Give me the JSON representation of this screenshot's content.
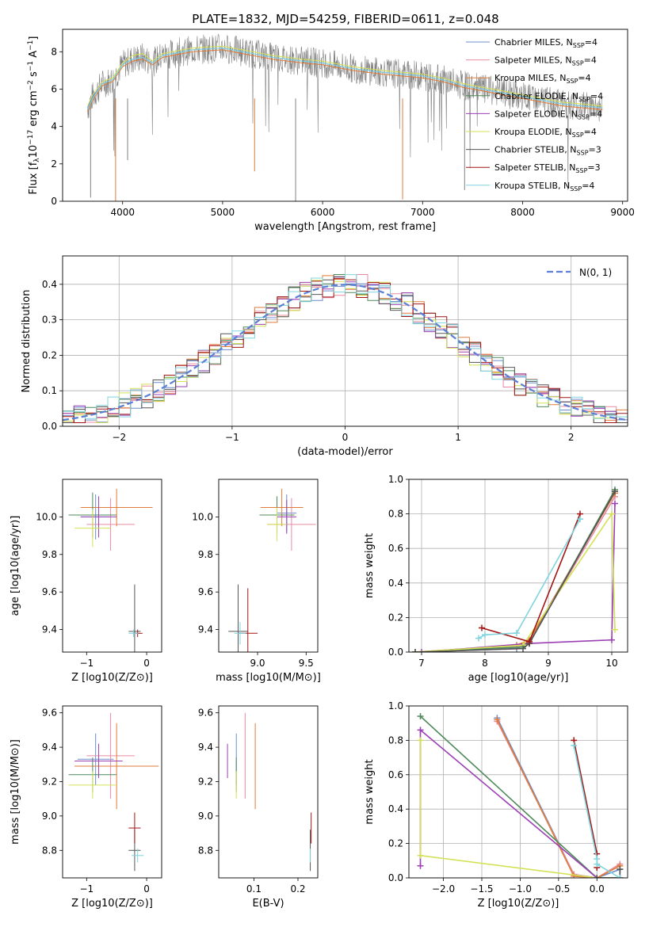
{
  "figure": {
    "title": "PLATE=1832, MJD=54259, FIBERID=0611, z=0.048"
  },
  "legend_entries": [
    {
      "label": "Chabrier MILES, N",
      "sub": "SSP",
      "tail": "=4",
      "color": "#6b8ccc"
    },
    {
      "label": "Salpeter MILES, N",
      "sub": "SSP",
      "tail": "=4",
      "color": "#e88ba0"
    },
    {
      "label": "Kroupa MILES, N",
      "sub": "SSP",
      "tail": "=4",
      "color": "#e07b39"
    },
    {
      "label": "Chabrier ELODIE, N",
      "sub": "SSP",
      "tail": "=4",
      "color": "#4f8a5a"
    },
    {
      "label": "Salpeter ELODIE, N",
      "sub": "SSP",
      "tail": "=4",
      "color": "#9b3fb5"
    },
    {
      "label": "Kroupa ELODIE, N",
      "sub": "SSP",
      "tail": "=4",
      "color": "#d4e157"
    },
    {
      "label": "Chabrier STELIB, N",
      "sub": "SSP",
      "tail": "=3",
      "color": "#555555"
    },
    {
      "label": "Salpeter STELIB, N",
      "sub": "SSP",
      "tail": "=3",
      "color": "#a31515"
    },
    {
      "label": "Kroupa STELIB, N",
      "sub": "SSP",
      "tail": "=4",
      "color": "#7fd4dd"
    }
  ],
  "chart_data": [
    {
      "id": "spectrum",
      "type": "line",
      "xlabel": "wavelength [Angstrom, rest frame]",
      "ylabel_parts": {
        "a": "Flux [f",
        "b": "10",
        "c": "−17",
        "d": " erg cm",
        "e": "−2",
        "f": " s",
        "g": "−1",
        "h": " A",
        "i": "−1",
        "j": "]"
      },
      "xlim": [
        3400,
        9050
      ],
      "ylim": [
        0,
        9.2
      ],
      "xticks": [
        4000,
        5000,
        6000,
        7000,
        8000,
        9000
      ],
      "yticks": [
        0,
        2,
        4,
        6,
        8
      ],
      "data_color": "#808080",
      "series": [
        {
          "name": "Chabrier MILES",
          "color": "#6b8ccc",
          "x": [
            3650,
            3700,
            3800,
            3900,
            4000,
            4100,
            4200,
            4300,
            4400,
            4500,
            4700,
            5000,
            5200,
            5500,
            5800,
            6000,
            6300,
            6600,
            6800,
            7000,
            7200,
            7400,
            7600,
            7800,
            8000,
            8200,
            8400,
            8600,
            8800
          ],
          "y": [
            5.0,
            5.6,
            6.3,
            6.5,
            7.3,
            7.6,
            7.7,
            7.4,
            7.8,
            7.9,
            8.1,
            8.2,
            8.0,
            7.7,
            7.5,
            7.4,
            7.1,
            6.9,
            6.8,
            6.7,
            6.5,
            6.2,
            6.0,
            5.8,
            5.6,
            5.4,
            5.2,
            5.1,
            5.0
          ]
        },
        {
          "name": "Kroupa MILES",
          "color": "#e07b39",
          "x": [
            3650,
            3700,
            3800,
            3900,
            4000,
            4100,
            4200,
            4300,
            4400,
            4500,
            4700,
            5000,
            5200,
            5500,
            5800,
            6000,
            6300,
            6600,
            6800,
            7000,
            7200,
            7400,
            7600,
            7800,
            8000,
            8200,
            8400,
            8600,
            8800
          ],
          "y": [
            4.8,
            5.4,
            6.2,
            6.4,
            7.2,
            7.5,
            7.6,
            7.3,
            7.7,
            7.8,
            8.0,
            8.1,
            7.9,
            7.6,
            7.4,
            7.3,
            7.0,
            6.8,
            6.7,
            6.6,
            6.4,
            6.1,
            5.9,
            5.7,
            5.5,
            5.3,
            5.1,
            5.0,
            4.9
          ]
        },
        {
          "name": "Kroupa ELODIE",
          "color": "#d4e157",
          "x": [
            3650,
            3700,
            3800,
            3900,
            4000,
            4100,
            4200,
            4300,
            4400,
            4500,
            4700,
            5000,
            5200,
            5500,
            5800,
            6000,
            6300,
            6600,
            6800,
            7000,
            7200,
            7400,
            7600,
            7800,
            8000,
            8200,
            8400,
            8600,
            8800
          ],
          "y": [
            5.1,
            5.7,
            6.4,
            6.6,
            7.4,
            7.8,
            7.9,
            7.5,
            7.9,
            8.0,
            8.2,
            8.3,
            8.1,
            7.8,
            7.6,
            7.5,
            7.2,
            7.0,
            6.9,
            6.8,
            6.6,
            6.3,
            6.1,
            5.9,
            5.7,
            5.5,
            5.3,
            5.2,
            5.1
          ]
        },
        {
          "name": "Kroupa STELIB",
          "color": "#7fd4dd",
          "x": [
            3650,
            3700,
            3800,
            3900,
            4000,
            4100,
            4200,
            4300,
            4400,
            4500,
            4700,
            5000,
            5200,
            5500,
            5800,
            6000,
            6300,
            6600,
            6800,
            7000,
            7200,
            7400,
            7600,
            7800,
            8000,
            8200,
            8400,
            8600,
            8800
          ],
          "y": [
            4.9,
            5.5,
            6.3,
            6.5,
            7.3,
            7.6,
            7.7,
            7.4,
            7.8,
            7.9,
            8.1,
            8.2,
            8.0,
            7.7,
            7.5,
            7.4,
            7.1,
            6.9,
            6.8,
            6.7,
            6.5,
            6.2,
            6.0,
            5.8,
            5.6,
            5.4,
            5.2,
            5.1,
            5.0
          ]
        }
      ]
    },
    {
      "id": "residuals",
      "type": "line",
      "xlabel": "(data-model)/error",
      "ylabel": "Normed distribution",
      "xlim": [
        -2.5,
        2.5
      ],
      "ylim": [
        0,
        0.48
      ],
      "xticks": [
        -2,
        -1,
        0,
        1,
        2
      ],
      "yticks": [
        0.0,
        0.1,
        0.2,
        0.3,
        0.4
      ],
      "grid": true,
      "legend": {
        "label": "N(0, 1)",
        "position": "top-right",
        "color": "#5b7fd4"
      }
    },
    {
      "id": "age-vs-z",
      "type": "scatter",
      "xlabel": "Z [log10(Z/Z⊙)]",
      "ylabel": "age  [log10(age/yr)]",
      "xlim": [
        -1.4,
        0.25
      ],
      "ylim": [
        9.28,
        10.2
      ],
      "xticks": [
        -1,
        0
      ],
      "yticks": [
        9.4,
        9.6,
        9.8,
        10.0
      ],
      "points": [
        {
          "color": "#6b8ccc",
          "x": -0.85,
          "y": 10.0,
          "xerr": 0.25,
          "yerr": 0.12
        },
        {
          "color": "#e88ba0",
          "x": -0.6,
          "y": 9.96,
          "xerr": 0.4,
          "yerr": 0.14
        },
        {
          "color": "#e07b39",
          "x": -0.5,
          "y": 10.05,
          "xerr": 0.6,
          "yerr": 0.1
        },
        {
          "color": "#4f8a5a",
          "x": -0.9,
          "y": 10.01,
          "xerr": 0.4,
          "yerr": 0.12
        },
        {
          "color": "#9b3fb5",
          "x": -0.8,
          "y": 10.0,
          "xerr": 0.3,
          "yerr": 0.11
        },
        {
          "color": "#d4e157",
          "x": -0.9,
          "y": 9.94,
          "xerr": 0.3,
          "yerr": 0.1
        },
        {
          "color": "#555555",
          "x": -0.2,
          "y": 9.39,
          "xerr": 0.1,
          "yerr": 0.25
        },
        {
          "color": "#a31515",
          "x": -0.15,
          "y": 9.38,
          "xerr": 0.08,
          "yerr": 0.02
        },
        {
          "color": "#7fd4dd",
          "x": -0.22,
          "y": 9.38,
          "xerr": 0.08,
          "yerr": 0.02
        }
      ]
    },
    {
      "id": "age-vs-mass",
      "type": "scatter",
      "xlabel": "mass [log10(M/M⊙)]",
      "xlim": [
        8.6,
        9.62
      ],
      "ylim": [
        9.28,
        10.2
      ],
      "xticks": [
        9.0,
        9.5
      ],
      "yticks": [
        9.4,
        9.6,
        9.8,
        10.0
      ],
      "points": [
        {
          "color": "#6b8ccc",
          "x": 9.3,
          "y": 10.02,
          "xerr": 0.1,
          "yerr": 0.1
        },
        {
          "color": "#e88ba0",
          "x": 9.35,
          "y": 9.96,
          "xerr": 0.25,
          "yerr": 0.14
        },
        {
          "color": "#e07b39",
          "x": 9.25,
          "y": 10.05,
          "xerr": 0.22,
          "yerr": 0.1
        },
        {
          "color": "#4f8a5a",
          "x": 9.2,
          "y": 10.01,
          "xerr": 0.18,
          "yerr": 0.1
        },
        {
          "color": "#9b3fb5",
          "x": 9.3,
          "y": 10.0,
          "xerr": 0.1,
          "yerr": 0.09
        },
        {
          "color": "#d4e157",
          "x": 9.2,
          "y": 9.96,
          "xerr": 0.1,
          "yerr": 0.09
        },
        {
          "color": "#555555",
          "x": 8.8,
          "y": 9.39,
          "xerr": 0.1,
          "yerr": 0.25
        },
        {
          "color": "#a31515",
          "x": 8.9,
          "y": 9.38,
          "xerr": 0.1,
          "yerr": 0.24
        },
        {
          "color": "#7fd4dd",
          "x": 8.82,
          "y": 9.38,
          "xerr": 0.06,
          "yerr": 0.06
        }
      ]
    },
    {
      "id": "weight-vs-age",
      "type": "line",
      "xlabel": "age  [log10(age/yr)]",
      "ylabel": "mass weight",
      "xlim": [
        6.8,
        10.25
      ],
      "ylim": [
        0,
        1.0
      ],
      "xticks": [
        7,
        8,
        9,
        10
      ],
      "yticks": [
        0.0,
        0.2,
        0.4,
        0.6,
        0.8,
        1.0
      ],
      "grid": true,
      "series": [
        {
          "color": "#6b8ccc",
          "x": [
            6.9,
            8.5,
            8.7,
            10.05
          ],
          "y": [
            0.0,
            0.02,
            0.05,
            0.93
          ]
        },
        {
          "color": "#e88ba0",
          "x": [
            6.9,
            8.5,
            8.7,
            10.05
          ],
          "y": [
            0.0,
            0.03,
            0.06,
            0.9
          ]
        },
        {
          "color": "#e07b39",
          "x": [
            6.9,
            8.5,
            8.7,
            10.05
          ],
          "y": [
            0.0,
            0.04,
            0.07,
            0.92
          ]
        },
        {
          "color": "#4f8a5a",
          "x": [
            6.9,
            8.6,
            8.7,
            10.05
          ],
          "y": [
            0.0,
            0.03,
            0.05,
            0.94
          ]
        },
        {
          "color": "#9b3fb5",
          "x": [
            7.0,
            8.7,
            10.0,
            10.05
          ],
          "y": [
            0.0,
            0.05,
            0.07,
            0.86
          ]
        },
        {
          "color": "#d4e157",
          "x": [
            6.9,
            8.6,
            10.0,
            10.05
          ],
          "y": [
            0.0,
            0.04,
            0.8,
            0.13
          ]
        },
        {
          "color": "#555555",
          "x": [
            6.9,
            8.6,
            8.7,
            10.05
          ],
          "y": [
            0.0,
            0.02,
            0.05,
            0.93
          ]
        },
        {
          "color": "#a31515",
          "x": [
            7.95,
            8.7,
            9.5
          ],
          "y": [
            0.14,
            0.06,
            0.8
          ]
        },
        {
          "color": "#7fd4dd",
          "x": [
            7.9,
            8.0,
            8.5,
            9.5
          ],
          "y": [
            0.08,
            0.1,
            0.11,
            0.77
          ]
        }
      ]
    },
    {
      "id": "mass-vs-z",
      "type": "scatter",
      "xlabel": "Z [log10(Z/Z⊙)]",
      "ylabel": "mass [log10(M/M⊙)]",
      "xlim": [
        -1.4,
        0.25
      ],
      "ylim": [
        8.64,
        9.64
      ],
      "xticks": [
        -1,
        0
      ],
      "yticks": [
        8.8,
        9.0,
        9.2,
        9.4,
        9.6
      ],
      "points": [
        {
          "color": "#6b8ccc",
          "x": -0.85,
          "y": 9.33,
          "xerr": 0.3,
          "yerr": 0.15
        },
        {
          "color": "#e88ba0",
          "x": -0.6,
          "y": 9.35,
          "xerr": 0.4,
          "yerr": 0.25
        },
        {
          "color": "#e07b39",
          "x": -0.5,
          "y": 9.29,
          "xerr": 0.7,
          "yerr": 0.25
        },
        {
          "color": "#4f8a5a",
          "x": -0.9,
          "y": 9.24,
          "xerr": 0.4,
          "yerr": 0.1
        },
        {
          "color": "#9b3fb5",
          "x": -0.8,
          "y": 9.32,
          "xerr": 0.4,
          "yerr": 0.1
        },
        {
          "color": "#d4e157",
          "x": -0.9,
          "y": 9.18,
          "xerr": 0.4,
          "yerr": 0.08
        },
        {
          "color": "#555555",
          "x": -0.2,
          "y": 8.8,
          "xerr": 0.1,
          "yerr": 0.12
        },
        {
          "color": "#a31515",
          "x": -0.2,
          "y": 8.93,
          "xerr": 0.1,
          "yerr": 0.09
        },
        {
          "color": "#7fd4dd",
          "x": -0.15,
          "y": 8.77,
          "xerr": 0.1,
          "yerr": 0.04
        }
      ]
    },
    {
      "id": "mass-vs-ebv",
      "type": "scatter",
      "xlabel": "E(B-V)",
      "xlim": [
        0.02,
        0.245
      ],
      "ylim": [
        8.64,
        9.64
      ],
      "xticks": [
        0.1,
        0.2
      ],
      "yticks": [
        8.8,
        9.0,
        9.2,
        9.4,
        9.6
      ],
      "points": [
        {
          "color": "#6b8ccc",
          "x": 0.06,
          "y": 9.33,
          "yerr": 0.15
        },
        {
          "color": "#e88ba0",
          "x": 0.08,
          "y": 9.35,
          "yerr": 0.25
        },
        {
          "color": "#e07b39",
          "x": 0.103,
          "y": 9.29,
          "yerr": 0.25
        },
        {
          "color": "#4f8a5a",
          "x": 0.06,
          "y": 9.24,
          "yerr": 0.1
        },
        {
          "color": "#9b3fb5",
          "x": 0.04,
          "y": 9.32,
          "yerr": 0.1
        },
        {
          "color": "#d4e157",
          "x": 0.06,
          "y": 9.18,
          "yerr": 0.08
        },
        {
          "color": "#555555",
          "x": 0.228,
          "y": 8.8,
          "yerr": 0.12
        },
        {
          "color": "#a31515",
          "x": 0.23,
          "y": 8.93,
          "yerr": 0.09
        },
        {
          "color": "#7fd4dd",
          "x": 0.228,
          "y": 8.77,
          "yerr": 0.04
        }
      ]
    },
    {
      "id": "weight-vs-z",
      "type": "line",
      "xlabel": "Z [log10(Z/Z⊙)]",
      "ylabel": "mass weight",
      "xlim": [
        -2.45,
        0.4
      ],
      "ylim": [
        0,
        1.0
      ],
      "xticks": [
        -2.0,
        -1.5,
        -1.0,
        -0.5,
        0.0
      ],
      "yticks": [
        0.0,
        0.2,
        0.4,
        0.6,
        0.8,
        1.0
      ],
      "grid": true,
      "series": [
        {
          "color": "#6b8ccc",
          "x": [
            -1.3,
            -0.3,
            0.0,
            0.3
          ],
          "y": [
            0.93,
            0.02,
            0.0,
            0.05
          ]
        },
        {
          "color": "#e88ba0",
          "x": [
            -1.3,
            -0.3,
            0.0,
            0.3
          ],
          "y": [
            0.91,
            0.02,
            0.0,
            0.08
          ]
        },
        {
          "color": "#e07b39",
          "x": [
            -1.3,
            -0.3,
            0.0,
            0.3
          ],
          "y": [
            0.92,
            0.01,
            0.0,
            0.07
          ]
        },
        {
          "color": "#4f8a5a",
          "x": [
            -2.3,
            0.0,
            0.3,
            0.3
          ],
          "y": [
            0.94,
            0.0,
            0.0,
            0.05
          ]
        },
        {
          "color": "#9b3fb5",
          "x": [
            -2.3,
            -2.3,
            0.0,
            0.3
          ],
          "y": [
            0.07,
            0.86,
            0.0,
            0.0
          ]
        },
        {
          "color": "#d4e157",
          "x": [
            -2.3,
            -2.3,
            0.0,
            0.3
          ],
          "y": [
            0.8,
            0.13,
            0.0,
            0.0
          ]
        },
        {
          "color": "#555555",
          "x": [
            0.0,
            0.3,
            0.3
          ],
          "y": [
            0.0,
            0.0,
            0.05
          ]
        },
        {
          "color": "#a31515",
          "x": [
            -0.3,
            0.0,
            0.0
          ],
          "y": [
            0.8,
            0.14,
            0.06
          ]
        },
        {
          "color": "#7fd4dd",
          "x": [
            -0.3,
            0.0,
            0.0,
            0.3
          ],
          "y": [
            0.77,
            0.11,
            0.08,
            0.0
          ]
        }
      ]
    }
  ]
}
